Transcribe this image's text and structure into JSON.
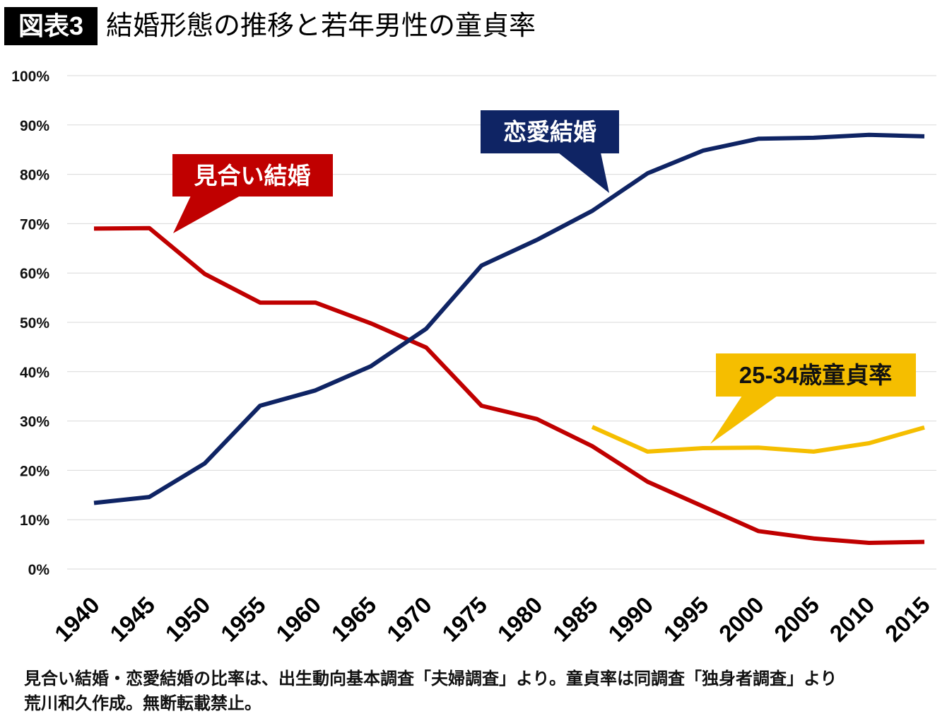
{
  "header": {
    "tag": "図表3",
    "title": "結婚形態の推移と若年男性の童貞率"
  },
  "note": {
    "line1": "見合い結婚・恋愛結婚の比率は、出生動向基本調査「夫婦調査」より。童貞率は同調査「独身者調査」より",
    "line2": "荒川和久作成。無断転載禁止。"
  },
  "chart_data": {
    "type": "line",
    "title": "結婚形態の推移と若年男性の童貞率",
    "xlabel": "",
    "ylabel": "",
    "x": [
      1940,
      1945,
      1950,
      1955,
      1960,
      1965,
      1970,
      1975,
      1980,
      1985,
      1990,
      1995,
      2000,
      2005,
      2010,
      2015
    ],
    "x_tick_labels": [
      "1940",
      "1945",
      "1950",
      "1955",
      "1960",
      "1965",
      "1970",
      "1975",
      "1980",
      "1985",
      "1990",
      "1995",
      "2000",
      "2005",
      "2010",
      "2015"
    ],
    "ylim": [
      0,
      100
    ],
    "y_ticks": [
      0,
      10,
      20,
      30,
      40,
      50,
      60,
      70,
      80,
      90,
      100
    ],
    "y_tick_labels": [
      "0%",
      "10%",
      "20%",
      "30%",
      "40%",
      "50%",
      "60%",
      "70%",
      "80%",
      "90%",
      "100%"
    ],
    "grid": true,
    "legend": "callout labels",
    "series": [
      {
        "name": "見合い結婚",
        "color": "#C00000",
        "values": [
          69.0,
          69.1,
          59.8,
          54.0,
          54.0,
          49.8,
          44.9,
          33.1,
          30.4,
          24.9,
          17.7,
          12.7,
          7.7,
          6.2,
          5.3,
          5.5
        ]
      },
      {
        "name": "恋愛結婚",
        "color": "#0F2464",
        "values": [
          13.4,
          14.6,
          21.4,
          33.1,
          36.2,
          41.1,
          48.7,
          61.5,
          66.7,
          72.6,
          80.2,
          84.8,
          87.2,
          87.4,
          88.0,
          87.7
        ]
      },
      {
        "name": "25-34歳童貞率",
        "color": "#F5BE00",
        "values": [
          null,
          null,
          null,
          null,
          null,
          null,
          null,
          null,
          null,
          28.8,
          23.8,
          24.5,
          24.6,
          23.8,
          25.5,
          28.7
        ]
      }
    ]
  }
}
